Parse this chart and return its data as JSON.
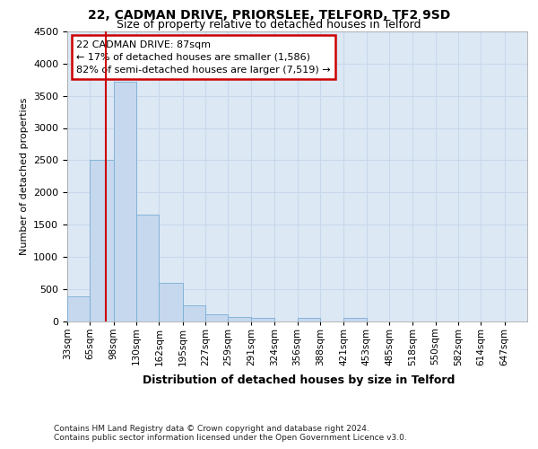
{
  "title_line1": "22, CADMAN DRIVE, PRIORSLEE, TELFORD, TF2 9SD",
  "title_line2": "Size of property relative to detached houses in Telford",
  "xlabel": "Distribution of detached houses by size in Telford",
  "ylabel": "Number of detached properties",
  "footnote_line1": "Contains HM Land Registry data © Crown copyright and database right 2024.",
  "footnote_line2": "Contains public sector information licensed under the Open Government Licence v3.0.",
  "annotation_title": "22 CADMAN DRIVE: 87sqm",
  "annotation_line2": "← 17% of detached houses are smaller (1,586)",
  "annotation_line3": "82% of semi-detached houses are larger (7,519) →",
  "property_size": 87,
  "bin_edges": [
    33,
    65,
    98,
    130,
    162,
    195,
    227,
    259,
    291,
    324,
    356,
    388,
    421,
    453,
    485,
    518,
    550,
    582,
    614,
    647,
    679
  ],
  "values": [
    380,
    2500,
    3720,
    1650,
    600,
    240,
    105,
    65,
    45,
    0,
    50,
    0,
    55,
    0,
    0,
    0,
    0,
    0,
    0,
    0
  ],
  "bar_face_color": "#c5d8ee",
  "bar_edge_color": "#7aadd4",
  "vline_color": "#cc0000",
  "ylim_max": 4500,
  "ytick_step": 500,
  "grid_color": "#c8d8eb",
  "bg_color": "#dde8f5",
  "fig_bg": "#ffffff",
  "ann_border_color": "#cc0000",
  "title1_fontsize": 10,
  "title2_fontsize": 9,
  "ylabel_fontsize": 8,
  "xlabel_fontsize": 9,
  "footnote_fontsize": 6.5,
  "tick_fontsize": 7.5,
  "ytick_fontsize": 8,
  "ann_fontsize": 8
}
